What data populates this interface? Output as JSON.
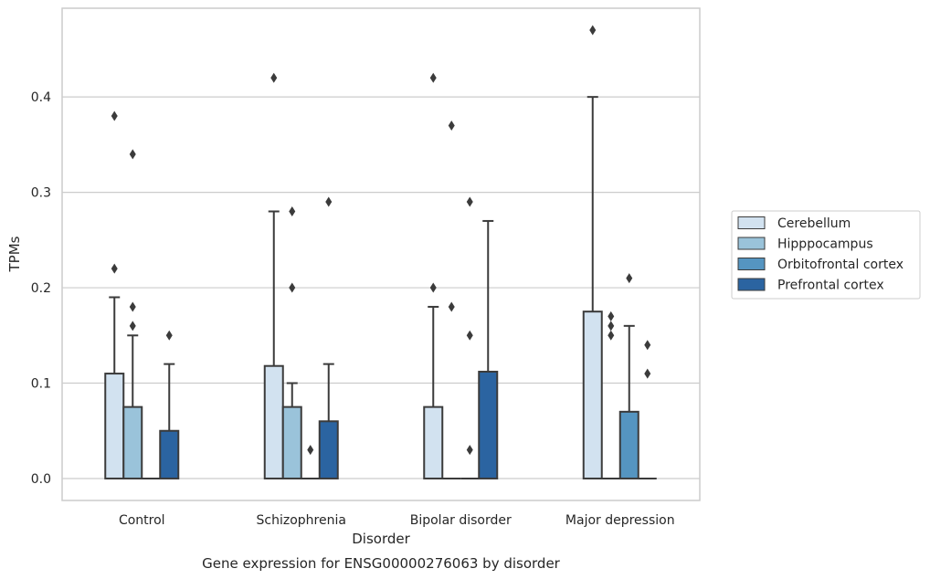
{
  "chart_data": {
    "type": "bar",
    "title": "",
    "caption": "Gene expression for ENSG00000276063 by disorder",
    "xlabel": "Disorder",
    "ylabel": "TPMs",
    "categories": [
      "Control",
      "Schizophrenia",
      "Bipolar disorder",
      "Major depression"
    ],
    "ylim": [
      -0.023,
      0.493
    ],
    "yticks": [
      0.0,
      0.1,
      0.2,
      0.3,
      0.4
    ],
    "ytick_labels": [
      "0.0",
      "0.1",
      "0.2",
      "0.3",
      "0.4"
    ],
    "grid": true,
    "legend_position": "right",
    "series": [
      {
        "name": "Cerebellum",
        "color": "#d2e2f0",
        "values": [
          0.11,
          0.118,
          0.075,
          0.175
        ],
        "whisker_high": [
          0.19,
          0.28,
          0.18,
          0.4
        ],
        "outliers": [
          [
            0.22,
            0.38
          ],
          [
            0.42
          ],
          [
            0.2,
            0.42
          ],
          [
            0.47
          ]
        ]
      },
      {
        "name": "Hipppocampus",
        "color": "#9ac3da",
        "values": [
          0.075,
          0.075,
          0.0,
          0.0
        ],
        "whisker_high": [
          0.15,
          0.1,
          null,
          null
        ],
        "outliers": [
          [
            0.16,
            0.18,
            0.34
          ],
          [
            0.2,
            0.28
          ],
          [
            0.18,
            0.37
          ],
          [
            0.15,
            0.16,
            0.17
          ]
        ]
      },
      {
        "name": "Orbitofrontal cortex",
        "color": "#5595c1",
        "values": [
          0.0,
          0.0,
          0.0,
          0.07
        ],
        "whisker_high": [
          null,
          null,
          null,
          0.16
        ],
        "outliers": [
          [],
          [
            0.03
          ],
          [
            0.03,
            0.15,
            0.29
          ],
          [
            0.21
          ]
        ]
      },
      {
        "name": "Prefrontal cortex",
        "color": "#2b64a1",
        "values": [
          0.05,
          0.06,
          0.112,
          0.0
        ],
        "whisker_high": [
          0.12,
          0.12,
          0.27,
          null
        ],
        "outliers": [
          [
            0.15
          ],
          [
            0.29
          ],
          [],
          [
            0.11,
            0.14
          ]
        ]
      }
    ]
  }
}
